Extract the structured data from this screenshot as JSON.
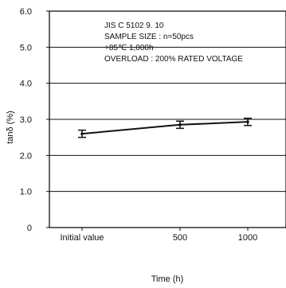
{
  "chart_data": {
    "type": "line",
    "categories": [
      "Initial value",
      "500",
      "1000"
    ],
    "series": [
      {
        "values": [
          2.6,
          2.85,
          2.93
        ],
        "error": [
          0.1,
          0.1,
          0.1
        ]
      }
    ],
    "xlabel": "Time (h)",
    "ylabel": "tanδ (%)",
    "ylim": [
      0,
      6.0
    ],
    "yticks": [
      "0",
      "1.0",
      "2.0",
      "3.0",
      "4.0",
      "5.0",
      "6.0"
    ],
    "grid": "horizontal",
    "annotations": [
      "JIS C 5102 9. 10",
      "SAMPLE SIZE : n=50pcs",
      "+85℃ 1,000h",
      "OVERLOAD : 200% RATED VOLTAGE"
    ],
    "colors": {
      "line": "#111111",
      "grid": "#111111"
    }
  }
}
